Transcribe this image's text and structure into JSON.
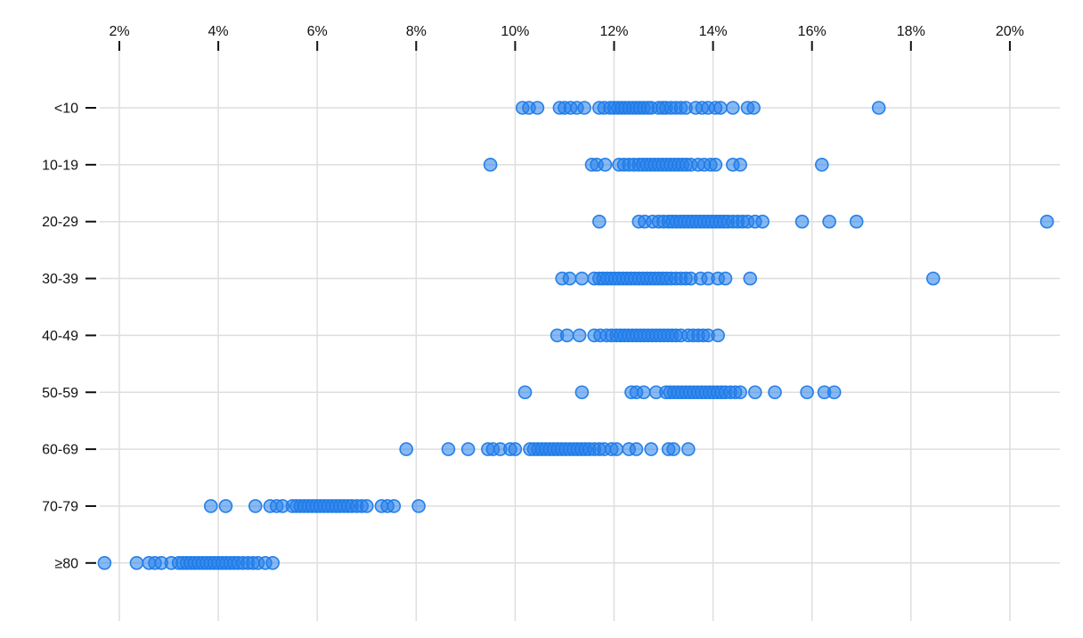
{
  "chart_data": {
    "type": "scatter",
    "subtype": "strip-plot",
    "title": "",
    "xlabel": "",
    "ylabel": "",
    "x_unit": "%",
    "x_ticks": [
      2,
      4,
      6,
      8,
      10,
      12,
      14,
      16,
      18,
      20
    ],
    "x_tick_labels": [
      "2%",
      "4%",
      "6%",
      "8%",
      "10%",
      "12%",
      "14%",
      "16%",
      "18%",
      "20%"
    ],
    "xlim": [
      1.2,
      21.5
    ],
    "grid": true,
    "legend": "none",
    "categories": [
      "<10",
      "10-19",
      "20-29",
      "30-39",
      "40-49",
      "50-59",
      "60-69",
      "70-79",
      "≥80"
    ],
    "series": [
      {
        "name": "<10",
        "values": [
          10.15,
          10.28,
          10.45,
          10.9,
          11.0,
          11.12,
          11.25,
          11.4,
          11.7,
          11.8,
          11.92,
          12.0,
          12.08,
          12.15,
          12.22,
          12.3,
          12.38,
          12.45,
          12.52,
          12.6,
          12.68,
          12.75,
          12.9,
          12.98,
          13.05,
          13.15,
          13.25,
          13.35,
          13.45,
          13.65,
          13.78,
          13.9,
          14.05,
          14.15,
          14.4,
          14.7,
          14.82,
          17.35
        ]
      },
      {
        "name": "10-19",
        "values": [
          9.5,
          11.55,
          11.65,
          11.82,
          12.1,
          12.2,
          12.3,
          12.4,
          12.5,
          12.58,
          12.66,
          12.74,
          12.82,
          12.9,
          12.98,
          13.06,
          13.14,
          13.22,
          13.3,
          13.38,
          13.46,
          13.55,
          13.7,
          13.82,
          13.95,
          14.05,
          14.4,
          14.55,
          16.2
        ]
      },
      {
        "name": "20-29",
        "values": [
          11.7,
          12.5,
          12.62,
          12.78,
          12.9,
          13.0,
          13.1,
          13.18,
          13.26,
          13.34,
          13.42,
          13.5,
          13.58,
          13.66,
          13.74,
          13.82,
          13.9,
          13.98,
          14.06,
          14.14,
          14.22,
          14.3,
          14.4,
          14.5,
          14.6,
          14.7,
          14.85,
          15.0,
          15.8,
          16.35,
          16.9,
          20.75
        ]
      },
      {
        "name": "30-39",
        "values": [
          10.95,
          11.1,
          11.35,
          11.6,
          11.7,
          11.78,
          11.86,
          11.94,
          12.02,
          12.1,
          12.18,
          12.26,
          12.34,
          12.42,
          12.5,
          12.58,
          12.66,
          12.74,
          12.82,
          12.9,
          12.98,
          13.06,
          13.15,
          13.25,
          13.35,
          13.45,
          13.55,
          13.75,
          13.9,
          14.1,
          14.25,
          14.75,
          18.45
        ]
      },
      {
        "name": "40-49",
        "values": [
          10.85,
          11.05,
          11.3,
          11.6,
          11.72,
          11.85,
          11.95,
          12.05,
          12.13,
          12.21,
          12.29,
          12.37,
          12.45,
          12.53,
          12.61,
          12.69,
          12.77,
          12.85,
          12.93,
          13.01,
          13.09,
          13.17,
          13.25,
          13.35,
          13.5,
          13.6,
          13.7,
          13.8,
          13.9,
          14.1
        ]
      },
      {
        "name": "50-59",
        "values": [
          10.2,
          11.35,
          12.35,
          12.45,
          12.6,
          12.85,
          13.05,
          13.13,
          13.21,
          13.29,
          13.37,
          13.45,
          13.53,
          13.61,
          13.69,
          13.77,
          13.85,
          13.93,
          14.01,
          14.09,
          14.17,
          14.25,
          14.35,
          14.45,
          14.55,
          14.85,
          15.25,
          15.9,
          16.25,
          16.45
        ]
      },
      {
        "name": "60-69",
        "values": [
          7.8,
          8.65,
          9.05,
          9.45,
          9.55,
          9.7,
          9.9,
          10.0,
          10.3,
          10.38,
          10.46,
          10.54,
          10.62,
          10.7,
          10.78,
          10.86,
          10.94,
          11.02,
          11.1,
          11.18,
          11.26,
          11.34,
          11.42,
          11.5,
          11.6,
          11.7,
          11.8,
          11.95,
          12.05,
          12.3,
          12.45,
          12.75,
          13.1,
          13.2,
          13.5
        ]
      },
      {
        "name": "70-79",
        "values": [
          3.85,
          4.15,
          4.75,
          5.05,
          5.18,
          5.3,
          5.5,
          5.58,
          5.66,
          5.74,
          5.82,
          5.9,
          5.98,
          6.06,
          6.14,
          6.22,
          6.3,
          6.38,
          6.46,
          6.54,
          6.62,
          6.7,
          6.8,
          6.9,
          7.0,
          7.3,
          7.42,
          7.55,
          8.05
        ]
      },
      {
        "name": "≥80",
        "values": [
          1.7,
          2.35,
          2.6,
          2.72,
          2.85,
          3.05,
          3.2,
          3.28,
          3.36,
          3.44,
          3.52,
          3.6,
          3.68,
          3.76,
          3.84,
          3.92,
          4.0,
          4.08,
          4.16,
          4.24,
          4.32,
          4.4,
          4.5,
          4.6,
          4.7,
          4.8,
          4.95,
          5.1
        ]
      }
    ]
  },
  "colors": {
    "background": "#ffffff",
    "dot_fill": "#2680eb",
    "dot_stroke": "#1e7be8",
    "gridline": "#dedede",
    "axis_text": "#111111",
    "tick_mark": "#111111"
  }
}
